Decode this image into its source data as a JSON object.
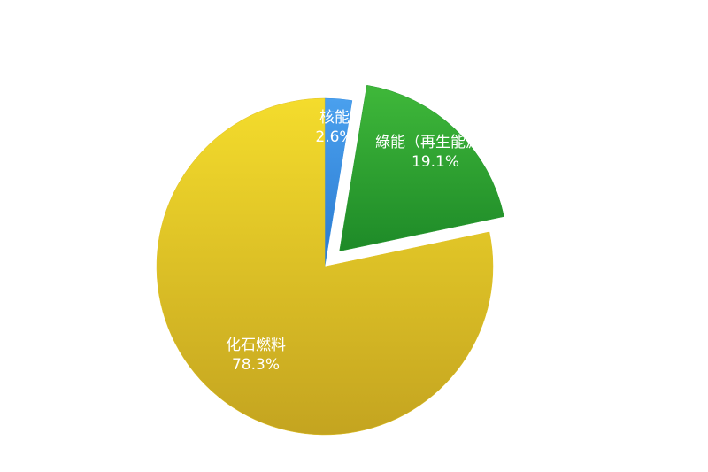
{
  "chart_data": {
    "type": "pie",
    "title": "",
    "slices": [
      {
        "name": "核能",
        "value": 2.6,
        "label": "2.6%",
        "color": "#3a8fe0",
        "exploded": false
      },
      {
        "name": "綠能（再生能源）",
        "value": 19.1,
        "label": "19.1%",
        "color": "#2a9a30",
        "exploded": true
      },
      {
        "name": "化石燃料",
        "value": 78.3,
        "label": "78.3%",
        "color": "#e0c020",
        "exploded": false
      }
    ],
    "legend": "none",
    "start": "top",
    "direction": "clockwise"
  }
}
